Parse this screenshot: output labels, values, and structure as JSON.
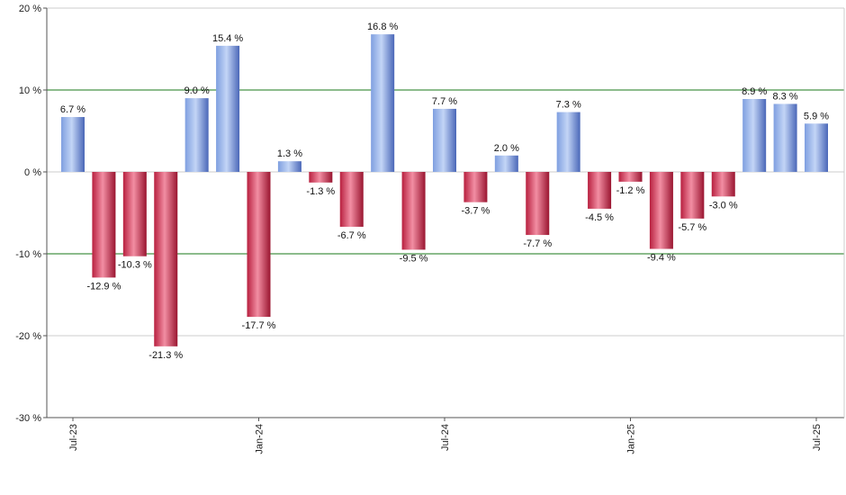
{
  "chart_data": {
    "type": "bar",
    "title": "",
    "xlabel": "",
    "ylabel": "",
    "ylim": [
      -30,
      20
    ],
    "y_ticks": [
      20,
      10,
      0,
      -10,
      -20,
      -30
    ],
    "y_tick_labels": [
      "20 %",
      "10 %",
      "0 %",
      "-10 %",
      "-20 %",
      "-30 %"
    ],
    "reference_lines": [
      10,
      -10
    ],
    "x_tick_labels": [
      {
        "label": "Jul-23",
        "index": 0
      },
      {
        "label": "Jan-24",
        "index": 6
      },
      {
        "label": "Jul-24",
        "index": 12
      },
      {
        "label": "Jan-25",
        "index": 18
      },
      {
        "label": "Jul-25",
        "index": 24
      }
    ],
    "values": [
      6.7,
      -12.9,
      -10.3,
      -21.3,
      9.0,
      15.4,
      -17.7,
      1.3,
      -1.3,
      -6.7,
      16.8,
      -9.5,
      7.7,
      -3.7,
      2.0,
      -7.7,
      7.3,
      -4.5,
      -1.2,
      -9.4,
      -5.7,
      -3.0,
      8.9,
      8.3,
      5.9
    ],
    "labels": [
      "6.7 %",
      "-12.9 %",
      "-10.3 %",
      "-21.3 %",
      "9.0 %",
      "15.4 %",
      "-17.7 %",
      "1.3 %",
      "-1.3 %",
      "-6.7 %",
      "16.8 %",
      "-9.5 %",
      "7.7 %",
      "-3.7 %",
      "2.0 %",
      "-7.7 %",
      "7.3 %",
      "-4.5 %",
      "-1.2 %",
      "-9.4 %",
      "-5.7 %",
      "-3.0 %",
      "8.9 %",
      "8.3 %",
      "5.9 %"
    ],
    "colors": {
      "positive": "#6f8fd8",
      "positive_light": "#b9cdf3",
      "negative": "#c8284a",
      "negative_light": "#f08aa0",
      "reference_line": "#1a7a1a",
      "grid": "#cccccc",
      "axis": "#555555"
    }
  }
}
